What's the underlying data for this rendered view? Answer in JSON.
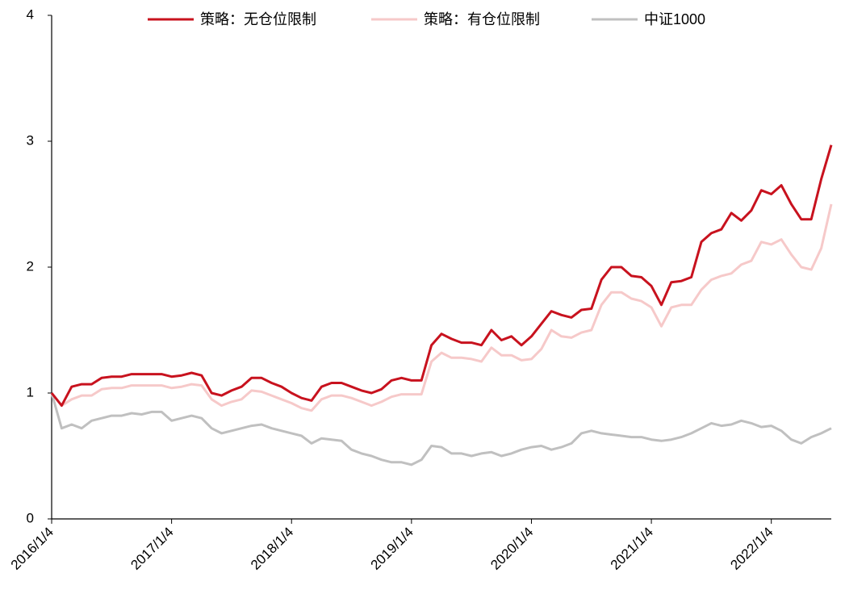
{
  "chart_data": {
    "type": "line",
    "categories": [
      "2016/1/4",
      null,
      null,
      null,
      null,
      null,
      null,
      null,
      null,
      null,
      null,
      null,
      "2017/1/4",
      null,
      null,
      null,
      null,
      null,
      null,
      null,
      null,
      null,
      null,
      null,
      "2018/1/4",
      null,
      null,
      null,
      null,
      null,
      null,
      null,
      null,
      null,
      null,
      null,
      "2019/1/4",
      null,
      null,
      null,
      null,
      null,
      null,
      null,
      null,
      null,
      null,
      null,
      "2020/1/4",
      null,
      null,
      null,
      null,
      null,
      null,
      null,
      null,
      null,
      null,
      null,
      "2021/1/4",
      null,
      null,
      null,
      null,
      null,
      null,
      null,
      null,
      null,
      null,
      null,
      "2022/1/4",
      null,
      null,
      null,
      null,
      null,
      null
    ],
    "series": [
      {
        "name": "策略：无仓位限制",
        "color": "#c8121e",
        "values": [
          1.0,
          0.9,
          1.05,
          1.07,
          1.07,
          1.12,
          1.13,
          1.13,
          1.15,
          1.15,
          1.15,
          1.15,
          1.13,
          1.14,
          1.16,
          1.14,
          1.0,
          0.98,
          1.02,
          1.05,
          1.12,
          1.12,
          1.08,
          1.05,
          1.0,
          0.96,
          0.94,
          1.05,
          1.08,
          1.08,
          1.05,
          1.02,
          1.0,
          1.03,
          1.1,
          1.12,
          1.1,
          1.1,
          1.38,
          1.47,
          1.43,
          1.4,
          1.4,
          1.38,
          1.5,
          1.42,
          1.45,
          1.38,
          1.45,
          1.55,
          1.65,
          1.62,
          1.6,
          1.66,
          1.67,
          1.9,
          2.0,
          2.0,
          1.93,
          1.92,
          1.85,
          1.7,
          1.88,
          1.89,
          1.92,
          2.2,
          2.27,
          2.3,
          2.43,
          2.37,
          2.45,
          2.61,
          2.58,
          2.65,
          2.5,
          2.38,
          2.38,
          2.7,
          2.97
        ]
      },
      {
        "name": "策略：有仓位限制",
        "color": "#f6c9c9",
        "values": [
          1.0,
          0.9,
          0.95,
          0.98,
          0.98,
          1.03,
          1.04,
          1.04,
          1.06,
          1.06,
          1.06,
          1.06,
          1.04,
          1.05,
          1.07,
          1.06,
          0.95,
          0.9,
          0.93,
          0.95,
          1.02,
          1.01,
          0.98,
          0.95,
          0.92,
          0.88,
          0.86,
          0.95,
          0.98,
          0.98,
          0.96,
          0.93,
          0.9,
          0.93,
          0.97,
          0.99,
          0.99,
          0.99,
          1.25,
          1.32,
          1.28,
          1.28,
          1.27,
          1.25,
          1.36,
          1.3,
          1.3,
          1.26,
          1.27,
          1.35,
          1.5,
          1.45,
          1.44,
          1.48,
          1.5,
          1.7,
          1.8,
          1.8,
          1.75,
          1.73,
          1.68,
          1.53,
          1.68,
          1.7,
          1.7,
          1.82,
          1.9,
          1.93,
          1.95,
          2.02,
          2.05,
          2.2,
          2.18,
          2.22,
          2.1,
          2.0,
          1.98,
          2.15,
          2.5
        ]
      },
      {
        "name": "中证1000",
        "color": "#c0c0c0",
        "values": [
          1.0,
          0.72,
          0.75,
          0.72,
          0.78,
          0.8,
          0.82,
          0.82,
          0.84,
          0.83,
          0.85,
          0.85,
          0.78,
          0.8,
          0.82,
          0.8,
          0.72,
          0.68,
          0.7,
          0.72,
          0.74,
          0.75,
          0.72,
          0.7,
          0.68,
          0.66,
          0.6,
          0.64,
          0.63,
          0.62,
          0.55,
          0.52,
          0.5,
          0.47,
          0.45,
          0.45,
          0.43,
          0.47,
          0.58,
          0.57,
          0.52,
          0.52,
          0.5,
          0.52,
          0.53,
          0.5,
          0.52,
          0.55,
          0.57,
          0.58,
          0.55,
          0.57,
          0.6,
          0.68,
          0.7,
          0.68,
          0.67,
          0.66,
          0.65,
          0.65,
          0.63,
          0.62,
          0.63,
          0.65,
          0.68,
          0.72,
          0.76,
          0.74,
          0.75,
          0.78,
          0.76,
          0.73,
          0.74,
          0.7,
          0.63,
          0.6,
          0.65,
          0.68,
          0.72
        ]
      }
    ],
    "ylim": [
      0,
      4
    ],
    "yticks": [
      0,
      1,
      2,
      3,
      4
    ],
    "grid": false,
    "legend": "top"
  }
}
